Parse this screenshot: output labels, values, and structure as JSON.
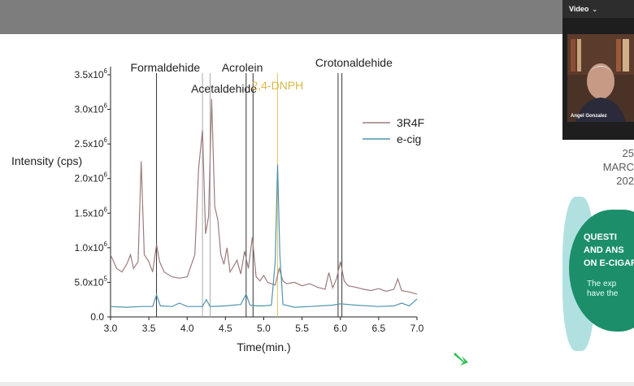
{
  "video_panel": {
    "title": "Video",
    "speaker_name": "Angel Gonzalez"
  },
  "poster": {
    "date_lines": [
      "25",
      "MARC",
      "202"
    ],
    "heading_lines": [
      "QUESTI",
      "AND ANS",
      "ON E-CIGAR"
    ],
    "sub_lines": [
      "The exp",
      "have the"
    ]
  },
  "chart_data": {
    "type": "line",
    "xlabel": "Time(min.)",
    "ylabel": "Intensity (cps)",
    "xlim": [
      3.0,
      7.0
    ],
    "ylim": [
      0,
      3500000
    ],
    "x_ticks": [
      "3.0",
      "3.5",
      "4.0",
      "4.5",
      "5.0",
      "5.5",
      "6.0",
      "6.5",
      "7.0"
    ],
    "y_ticks": [
      {
        "value": 0,
        "label": "0.0"
      },
      {
        "value": 500000,
        "label": "5.0x10",
        "exp": "5"
      },
      {
        "value": 1000000,
        "label": "1.0x10",
        "exp": "6"
      },
      {
        "value": 1500000,
        "label": "1.5x10",
        "exp": "6"
      },
      {
        "value": 2000000,
        "label": "2.0x10",
        "exp": "6"
      },
      {
        "value": 2500000,
        "label": "2.5x10",
        "exp": "6"
      },
      {
        "value": 3000000,
        "label": "3.0x10",
        "exp": "6"
      },
      {
        "value": 3500000,
        "label": "3.5x10",
        "exp": "6"
      }
    ],
    "legend_position": "top-right",
    "markers": [
      {
        "label": "Formaldehide",
        "x": 3.6,
        "color": "#333333"
      },
      {
        "label": "Acetaldehide",
        "x": 4.2,
        "color": "#aaaaaa"
      },
      {
        "label": "",
        "x": 4.3,
        "color": "#aaaaaa"
      },
      {
        "label": "Acrolein",
        "x": 4.77,
        "color": "#333333"
      },
      {
        "label": "",
        "x": 4.86,
        "color": "#333333"
      },
      {
        "label": "2,4-DNPH",
        "x": 5.18,
        "color": "#e3c75a"
      },
      {
        "label": "Crotonaldehide",
        "x": 5.97,
        "color": "#333333"
      },
      {
        "label": "",
        "x": 6.02,
        "color": "#333333"
      }
    ],
    "series": [
      {
        "name": "3R4F",
        "color": "#9c7c7c",
        "x": [
          3.0,
          3.08,
          3.15,
          3.22,
          3.26,
          3.3,
          3.36,
          3.4,
          3.44,
          3.5,
          3.55,
          3.6,
          3.64,
          3.7,
          3.8,
          3.9,
          4.0,
          4.1,
          4.15,
          4.2,
          4.24,
          4.28,
          4.32,
          4.36,
          4.4,
          4.44,
          4.48,
          4.52,
          4.56,
          4.6,
          4.65,
          4.7,
          4.75,
          4.8,
          4.85,
          4.9,
          4.95,
          5.0,
          5.05,
          5.1,
          5.15,
          5.2,
          5.25,
          5.3,
          5.4,
          5.5,
          5.6,
          5.7,
          5.8,
          5.85,
          5.9,
          5.95,
          6.0,
          6.05,
          6.1,
          6.2,
          6.3,
          6.4,
          6.5,
          6.6,
          6.7,
          6.75,
          6.8,
          6.9,
          7.0
        ],
        "values": [
          900000,
          700000,
          650000,
          780000,
          900000,
          700000,
          800000,
          2250000,
          900000,
          800000,
          650000,
          1050000,
          800000,
          650000,
          580000,
          560000,
          580000,
          900000,
          2150000,
          2700000,
          1200000,
          1450000,
          3150000,
          1600000,
          1400000,
          900000,
          760000,
          1000000,
          650000,
          720000,
          820000,
          620000,
          950000,
          700000,
          1150000,
          580000,
          520000,
          600000,
          500000,
          480000,
          460000,
          700000,
          520000,
          480000,
          500000,
          450000,
          480000,
          430000,
          400000,
          640000,
          420000,
          550000,
          800000,
          520000,
          450000,
          430000,
          400000,
          380000,
          410000,
          370000,
          400000,
          550000,
          380000,
          360000,
          330000
        ]
      },
      {
        "name": "e-cig",
        "color": "#4f94ad",
        "x": [
          3.0,
          3.2,
          3.4,
          3.55,
          3.6,
          3.65,
          3.8,
          3.9,
          4.0,
          4.2,
          4.25,
          4.3,
          4.5,
          4.7,
          4.77,
          4.82,
          4.9,
          5.0,
          5.1,
          5.15,
          5.18,
          5.21,
          5.25,
          5.4,
          5.6,
          5.9,
          6.0,
          6.2,
          6.5,
          6.7,
          6.8,
          6.9,
          7.0
        ],
        "values": [
          150000,
          140000,
          150000,
          150000,
          320000,
          160000,
          150000,
          200000,
          150000,
          150000,
          250000,
          150000,
          160000,
          180000,
          330000,
          170000,
          160000,
          160000,
          170000,
          800000,
          2200000,
          900000,
          180000,
          140000,
          150000,
          170000,
          190000,
          170000,
          150000,
          160000,
          200000,
          160000,
          260000
        ]
      }
    ]
  }
}
